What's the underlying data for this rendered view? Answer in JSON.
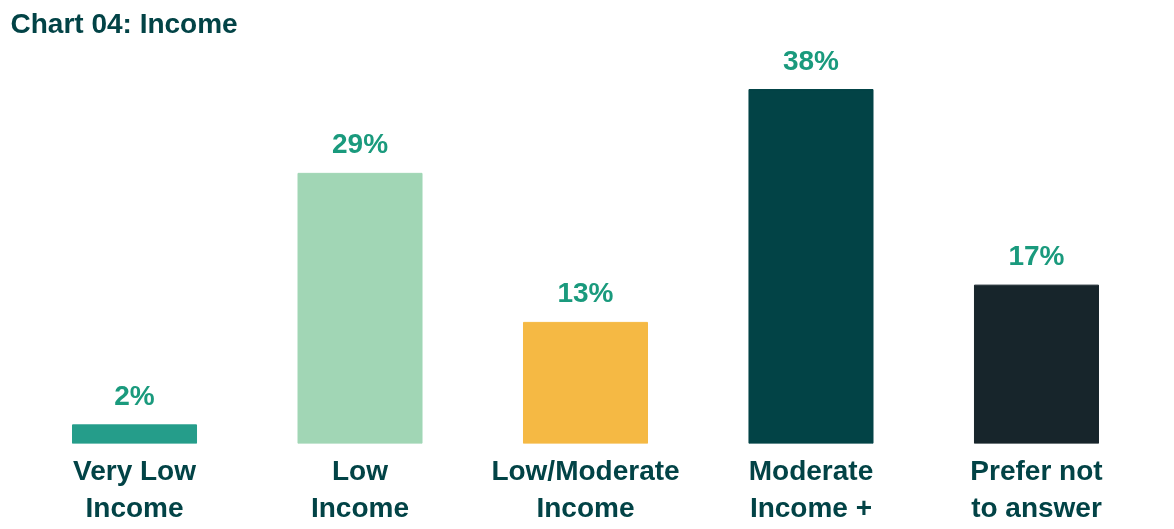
{
  "chart_data": {
    "type": "bar",
    "title": "Chart 04: Income",
    "categories": [
      "Very Low\nIncome",
      "Low\nIncome",
      "Low/Moderate\nIncome",
      "Moderate\nIncome +",
      "Prefer not\nto answer"
    ],
    "values": [
      2,
      29,
      13,
      38,
      17
    ],
    "colors": [
      "#259d8a",
      "#a1d6b5",
      "#f5b944",
      "#024346",
      "#17252b"
    ],
    "data_labels": true,
    "value_labels": [
      "2%",
      "29%",
      "13%",
      "38%",
      "17%"
    ],
    "grid": false
  }
}
